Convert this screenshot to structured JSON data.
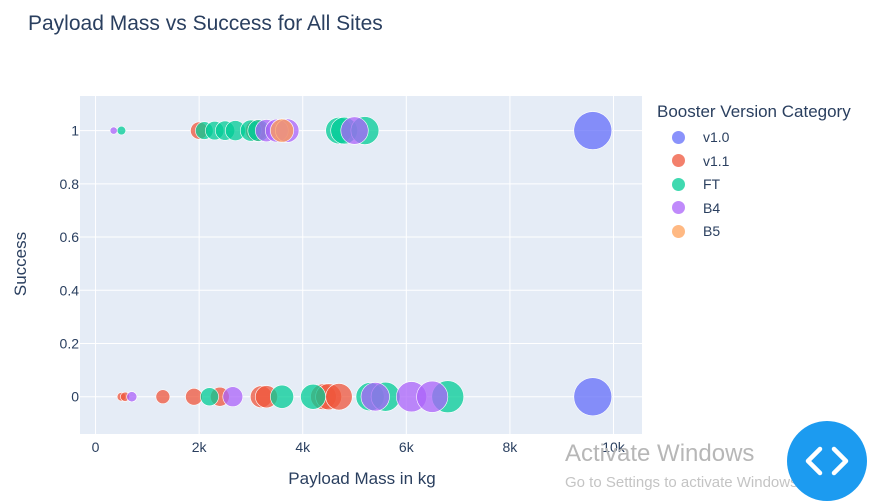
{
  "window": {
    "watermark_title": "Activate Windows",
    "watermark_subtitle": "Go to Settings to activate Windows."
  },
  "overlay": {
    "code_button_icon": "code-brackets-icon",
    "code_button_color": "#1c9bf0"
  },
  "chart_data": {
    "type": "scatter",
    "title": "Payload Mass vs Success for All Sites",
    "xlabel": "Payload Mass in kg",
    "ylabel": "Success",
    "xlim": [
      -300,
      10550
    ],
    "ylim": [
      -0.14,
      1.13
    ],
    "x_ticks": [
      0,
      2000,
      4000,
      6000,
      8000,
      10000
    ],
    "x_tick_labels": [
      "0",
      "2k",
      "4k",
      "6k",
      "8k",
      "10k"
    ],
    "y_ticks": [
      0,
      0.2,
      0.4,
      0.6,
      0.8,
      1
    ],
    "y_tick_labels": [
      "0",
      "0.2",
      "0.4",
      "0.6",
      "0.8",
      "1"
    ],
    "grid": true,
    "plot_background": "#e5ecf6",
    "legend_title": "Booster Version Category",
    "legend_position": "right",
    "marker_size_encodes": "Payload Mass in kg",
    "series": [
      {
        "name": "v1.0",
        "color": "#636efa",
        "points": [
          {
            "x": 9600,
            "y": 1
          },
          {
            "x": 9600,
            "y": 0
          }
        ]
      },
      {
        "name": "v1.1",
        "color": "#ef553b",
        "points": [
          {
            "x": 500,
            "y": 0
          },
          {
            "x": 570,
            "y": 0
          },
          {
            "x": 1300,
            "y": 0
          },
          {
            "x": 1900,
            "y": 0
          },
          {
            "x": 2000,
            "y": 1
          },
          {
            "x": 2400,
            "y": 0
          },
          {
            "x": 3100,
            "y": 1
          },
          {
            "x": 3200,
            "y": 0
          },
          {
            "x": 3300,
            "y": 0
          },
          {
            "x": 3600,
            "y": 1
          },
          {
            "x": 4400,
            "y": 0
          },
          {
            "x": 4500,
            "y": 0
          },
          {
            "x": 4700,
            "y": 0
          }
        ]
      },
      {
        "name": "FT",
        "color": "#00cc96",
        "points": [
          {
            "x": 500,
            "y": 1
          },
          {
            "x": 2100,
            "y": 1
          },
          {
            "x": 2200,
            "y": 0
          },
          {
            "x": 2300,
            "y": 1
          },
          {
            "x": 2500,
            "y": 1
          },
          {
            "x": 2700,
            "y": 1
          },
          {
            "x": 3000,
            "y": 1
          },
          {
            "x": 3150,
            "y": 1
          },
          {
            "x": 3600,
            "y": 0
          },
          {
            "x": 4200,
            "y": 0
          },
          {
            "x": 4700,
            "y": 1
          },
          {
            "x": 4800,
            "y": 1
          },
          {
            "x": 5200,
            "y": 1
          },
          {
            "x": 5300,
            "y": 0
          },
          {
            "x": 5600,
            "y": 0
          },
          {
            "x": 6800,
            "y": 0
          }
        ]
      },
      {
        "name": "B4",
        "color": "#ab63fa",
        "points": [
          {
            "x": 350,
            "y": 1
          },
          {
            "x": 700,
            "y": 0
          },
          {
            "x": 2650,
            "y": 0
          },
          {
            "x": 3300,
            "y": 1
          },
          {
            "x": 3500,
            "y": 1
          },
          {
            "x": 3700,
            "y": 1
          },
          {
            "x": 5000,
            "y": 1
          },
          {
            "x": 5400,
            "y": 0
          },
          {
            "x": 6100,
            "y": 0
          },
          {
            "x": 6500,
            "y": 0
          }
        ]
      },
      {
        "name": "B5",
        "color": "#ffa15a",
        "points": [
          {
            "x": 3600,
            "y": 1
          }
        ]
      }
    ]
  }
}
